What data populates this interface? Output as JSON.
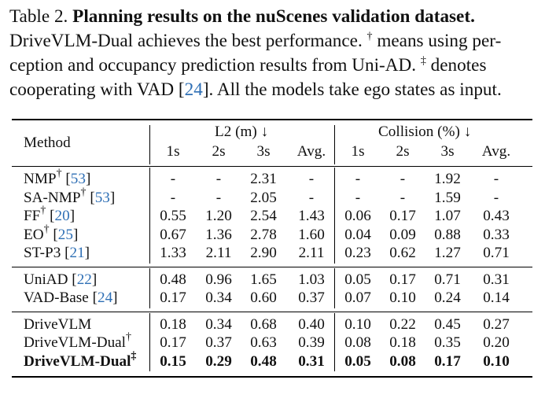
{
  "caption": {
    "label": "Table 2.",
    "title": "Planning results on the nuScenes validation dataset.",
    "line2a": "DriveVLM-Dual achieves the best performance.",
    "line2b": "means using per-",
    "line3a": "ception and occupancy prediction results from Uni-AD.",
    "line3b": "denotes",
    "line4a": "cooperating with VAD [",
    "line4cite": "24",
    "line4b": "].  All the models take ego states as input.",
    "dagger": "†",
    "ddagger": "‡"
  },
  "table": {
    "header": {
      "method": "Method",
      "l2_group": "L2 (m) ↓",
      "collision_group": "Collision (%) ↓",
      "subcols": [
        "1s",
        "2s",
        "3s",
        "Avg.",
        "1s",
        "2s",
        "3s",
        "Avg."
      ]
    },
    "groups": [
      [
        {
          "name": "NMP",
          "mark": "†",
          "cite": "53",
          "values": [
            "-",
            "-",
            "2.31",
            "-",
            "-",
            "-",
            "1.92",
            "-"
          ]
        },
        {
          "name": "SA-NMP",
          "mark": "†",
          "cite": "53",
          "values": [
            "-",
            "-",
            "2.05",
            "-",
            "-",
            "-",
            "1.59",
            "-"
          ]
        },
        {
          "name": "FF",
          "mark": "†",
          "cite": "20",
          "values": [
            "0.55",
            "1.20",
            "2.54",
            "1.43",
            "0.06",
            "0.17",
            "1.07",
            "0.43"
          ]
        },
        {
          "name": "EO",
          "mark": "†",
          "cite": "25",
          "values": [
            "0.67",
            "1.36",
            "2.78",
            "1.60",
            "0.04",
            "0.09",
            "0.88",
            "0.33"
          ]
        },
        {
          "name": "ST-P3",
          "mark": "",
          "cite": "21",
          "values": [
            "1.33",
            "2.11",
            "2.90",
            "2.11",
            "0.23",
            "0.62",
            "1.27",
            "0.71"
          ]
        }
      ],
      [
        {
          "name": "UniAD",
          "mark": "",
          "cite": "22",
          "values": [
            "0.48",
            "0.96",
            "1.65",
            "1.03",
            "0.05",
            "0.17",
            "0.71",
            "0.31"
          ]
        },
        {
          "name": "VAD-Base",
          "mark": "",
          "cite": "24",
          "values": [
            "0.17",
            "0.34",
            "0.60",
            "0.37",
            "0.07",
            "0.10",
            "0.24",
            "0.14"
          ]
        }
      ],
      [
        {
          "name": "DriveVLM",
          "mark": "",
          "cite": "",
          "values": [
            "0.18",
            "0.34",
            "0.68",
            "0.40",
            "0.10",
            "0.22",
            "0.45",
            "0.27"
          ]
        },
        {
          "name": "DriveVLM-Dual",
          "mark": "†",
          "cite": "",
          "values": [
            "0.17",
            "0.37",
            "0.63",
            "0.39",
            "0.08",
            "0.18",
            "0.35",
            "0.20"
          ]
        },
        {
          "name": "DriveVLM-Dual",
          "mark": "‡",
          "cite": "",
          "bold": true,
          "values": [
            "0.15",
            "0.29",
            "0.48",
            "0.31",
            "0.05",
            "0.08",
            "0.17",
            "0.10"
          ]
        }
      ]
    ]
  }
}
